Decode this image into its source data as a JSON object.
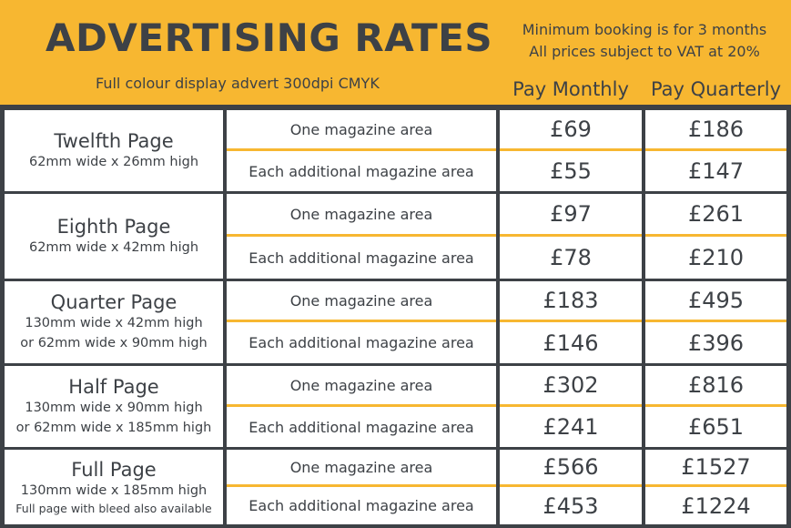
{
  "header": {
    "title": "ADVERTISING RATES",
    "subtitle": "Full colour display advert 300dpi CMYK",
    "note_line1": "Minimum booking is for 3 months",
    "note_line2": "All prices subject to VAT at 20%",
    "col_monthly": "Pay Monthly",
    "col_quarterly": "Pay Quarterly"
  },
  "colors": {
    "accent": "#f7b731",
    "dark": "#3d4146",
    "cell": "#ffffff"
  },
  "rows": [
    {
      "name": "Twelfth Page",
      "dims": [
        "62mm wide x 26mm high"
      ],
      "small": "",
      "lines": [
        {
          "area": "One magazine area",
          "monthly": "£69",
          "quarterly": "£186"
        },
        {
          "area": "Each additional magazine area",
          "monthly": "£55",
          "quarterly": "£147"
        }
      ]
    },
    {
      "name": "Eighth Page",
      "dims": [
        "62mm wide x 42mm high"
      ],
      "small": "",
      "lines": [
        {
          "area": "One magazine area",
          "monthly": "£97",
          "quarterly": "£261"
        },
        {
          "area": "Each additional magazine area",
          "monthly": "£78",
          "quarterly": "£210"
        }
      ]
    },
    {
      "name": "Quarter Page",
      "dims": [
        "130mm wide x 42mm high",
        "or 62mm wide x 90mm high"
      ],
      "small": "",
      "lines": [
        {
          "area": "One magazine area",
          "monthly": "£183",
          "quarterly": "£495"
        },
        {
          "area": "Each additional magazine area",
          "monthly": "£146",
          "quarterly": "£396"
        }
      ]
    },
    {
      "name": "Half Page",
      "dims": [
        "130mm wide x 90mm high",
        "or 62mm wide x 185mm high"
      ],
      "small": "",
      "lines": [
        {
          "area": "One magazine area",
          "monthly": "£302",
          "quarterly": "£816"
        },
        {
          "area": "Each additional magazine area",
          "monthly": "£241",
          "quarterly": "£651"
        }
      ]
    },
    {
      "name": "Full Page",
      "dims": [
        "130mm wide x 185mm high"
      ],
      "small": "Full page with bleed also available",
      "lines": [
        {
          "area": "One magazine area",
          "monthly": "£566",
          "quarterly": "£1527"
        },
        {
          "area": "Each additional magazine area",
          "monthly": "£453",
          "quarterly": "£1224"
        }
      ]
    }
  ]
}
